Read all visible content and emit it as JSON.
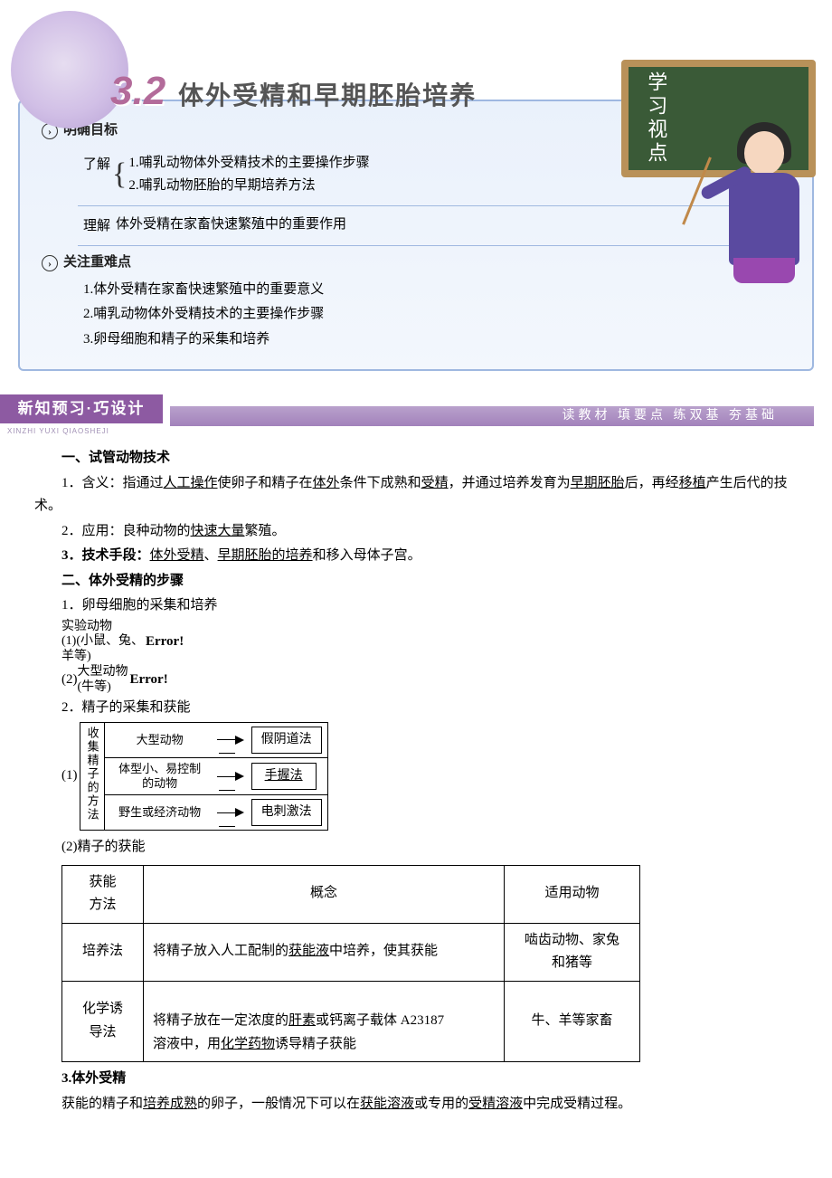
{
  "header": {
    "section_number": "3.2",
    "section_title": "体外受精和早期胚胎培养",
    "board_label": "学习视点",
    "sub_goals_label": "明确目标",
    "goal_tag1": "了解",
    "goal_lines1a": "1.哺乳动物体外受精技术的主要操作步骤",
    "goal_lines1b": "2.哺乳动物胚胎的早期培养方法",
    "goal_tag2": "理解",
    "goal_line2": "体外受精在家畜快速繁殖中的重要作用",
    "sub_focus_label": "关注重难点",
    "focus1": "1.体外受精在家畜快速繁殖中的重要意义",
    "focus2": "2.哺乳动物体外受精技术的主要操作步骤",
    "focus3": "3.卵母细胞和精子的采集和培养"
  },
  "strip": {
    "flag": "新知预习·巧设计",
    "pinyin": "XINZHI YUXI  QIAOSHEJI",
    "runner": "读教材  填要点    练双基  夯基础"
  },
  "body": {
    "h_a": "一、试管动物技术",
    "a1_pre": "1．含义：指通过",
    "a1_u1": "人工操作",
    "a1_mid1": "使卵子和精子在",
    "a1_u2": "体外",
    "a1_mid2": "条件下成熟和",
    "a1_u3": "受精",
    "a1_mid3": "，并通过培养发育为",
    "a1_u4": "早期胚胎",
    "a1_mid4": "后，再经",
    "a1_u5": "移植",
    "a1_end": "产生后代的技术。",
    "a2_pre": "2．应用：良种动物的",
    "a2_u1": "快速大量",
    "a2_end": "繁殖。",
    "a3_pre": "3．技术手段：",
    "a3_u1": "体外受精",
    "a3_sep1": "、",
    "a3_u2": "早期胚胎的培养",
    "a3_end": "和移入母体子宫。",
    "h_b": "二、体外受精的步骤",
    "b1": "1．卵母细胞的采集和培养",
    "b1_1_line1": "实验动物",
    "b1_1_line2": "(1)(小鼠、兔、",
    "b1_1_line3": "羊等)",
    "b1_1_err": "Error!",
    "b1_2_line1": "大型动物",
    "b1_2_line2": "(牛等)",
    "b1_2_pre": "(2)",
    "b1_2_err": "Error!",
    "b2": "2．精子的采集和获能",
    "sperm_lead": "(1)",
    "sperm_vlabel": "收集精子的方法",
    "sperm_rows": [
      {
        "cat": "大型动物",
        "method": "假阴道法",
        "underline": false
      },
      {
        "cat": "体型小、易控制\n的动物",
        "method": "手握法",
        "underline": true
      },
      {
        "cat": "野生或经济动物",
        "method": "电刺激法",
        "underline": false
      }
    ],
    "b2_2": "(2)精子的获能",
    "table": {
      "h1": "获能\n方法",
      "h2": "概念",
      "h3": "适用动物",
      "r1c1": "培养法",
      "r1c2_pre": "将精子放入人工配制的",
      "r1c2_u": "获能液",
      "r1c2_end": "中培养，使其获能",
      "r1c3": "啮齿动物、家兔\n和猪等",
      "r2c1": "化学诱\n导法",
      "r2c2_pre": "将精子放在一定浓度的",
      "r2c2_u1": "肝素",
      "r2c2_mid": "或钙离子载体 A23187\n溶液中，用",
      "r2c2_u2": "化学药物",
      "r2c2_end": "诱导精子获能",
      "r2c3": "牛、羊等家畜"
    },
    "b3": "3.体外受精",
    "b3_body_pre": "获能的精子和",
    "b3_u1": "培养成熟",
    "b3_mid1": "的卵子，一般情况下可以在",
    "b3_u2": "获能溶液",
    "b3_mid2": "或专用的",
    "b3_u3": "受精溶液",
    "b3_end": "中完成受精过程。"
  },
  "style": {
    "accent_purple": "#8d5aa2",
    "card_border": "#9fb8e0",
    "board_green": "#3a5a37",
    "board_frame": "#b99159",
    "sphere_pink": "#b36b9a"
  }
}
